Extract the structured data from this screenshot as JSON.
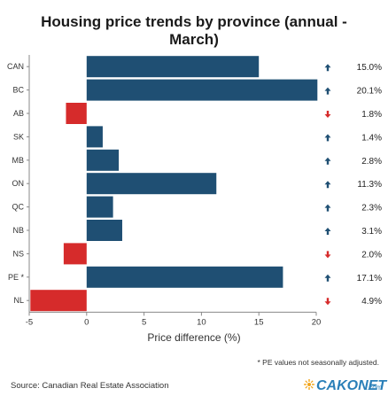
{
  "chart_data": {
    "type": "bar",
    "orientation": "horizontal",
    "title_lines": [
      "Housing price trends by province (annual -",
      "March)"
    ],
    "categories": [
      "CAN",
      "BC",
      "AB",
      "SK",
      "MB",
      "ON",
      "QC",
      "NB",
      "NS",
      "PE *",
      "NL"
    ],
    "values": [
      15.0,
      20.1,
      -1.8,
      1.4,
      2.8,
      11.3,
      2.3,
      3.1,
      -2.0,
      17.1,
      -4.9
    ],
    "value_labels": [
      "15.0%",
      "20.1%",
      "1.8%",
      "1.4%",
      "2.8%",
      "11.3%",
      "2.3%",
      "3.1%",
      "2.0%",
      "17.1%",
      "4.9%"
    ],
    "xlabel": "Price difference (%)",
    "xlim": [
      -5,
      20
    ],
    "xticks": [
      -5,
      0,
      5,
      10,
      15,
      20
    ],
    "grid": false,
    "colors": {
      "positive": "#1f4f73",
      "negative": "#d62b2b",
      "up_arrow": "#1f4f73",
      "down_arrow": "#d62b2b"
    }
  },
  "footnote": "* PE values not seasonally adjusted.",
  "source": "Source: Canadian Real Estate Association",
  "logo": {
    "text": "CAKONET",
    "suffix": ".com"
  }
}
